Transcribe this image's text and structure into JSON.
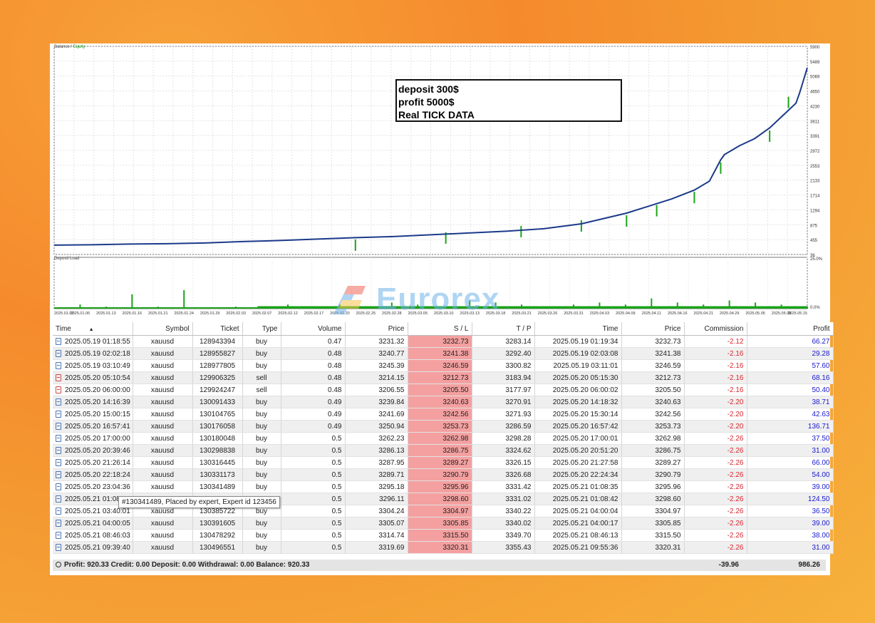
{
  "chart_data": [
    {
      "type": "line",
      "title": "",
      "legend": [
        "Balance",
        "Equity"
      ],
      "legend_separator": "/",
      "y_ticks": [
        "5900",
        "5489",
        "5069",
        "4650",
        "4230",
        "3811",
        "3391",
        "2972",
        "2553",
        "2133",
        "1714",
        "1294",
        "875",
        "455",
        "36"
      ],
      "ylim": [
        36,
        5900
      ],
      "series": [
        {
          "name": "Balance",
          "x": [
            0,
            0.05,
            0.1,
            0.15,
            0.2,
            0.25,
            0.3,
            0.35,
            0.4,
            0.45,
            0.5,
            0.55,
            0.6,
            0.65,
            0.7,
            0.73,
            0.76,
            0.79,
            0.82,
            0.85,
            0.87,
            0.885,
            0.89,
            0.91,
            0.93,
            0.95,
            0.97,
            0.985,
            0.99,
            1.0
          ],
          "y": [
            300,
            310,
            330,
            340,
            360,
            400,
            430,
            470,
            510,
            540,
            590,
            640,
            690,
            760,
            900,
            1050,
            1200,
            1400,
            1600,
            1850,
            2100,
            2700,
            2850,
            3100,
            3300,
            3600,
            4000,
            4300,
            4600,
            5300
          ]
        },
        {
          "name": "Equity",
          "x": [
            0.4,
            0.52,
            0.62,
            0.7,
            0.76,
            0.8,
            0.85,
            0.885,
            0.95,
            0.975
          ],
          "y": [
            380,
            580,
            760,
            920,
            1060,
            1350,
            1720,
            2550,
            3450,
            4400
          ]
        }
      ],
      "colors": {
        "balance": "#1b3a8a",
        "equity": "#1aa31a"
      }
    },
    {
      "type": "bar",
      "title": "Deposit Load",
      "y_ticks": [
        "25.0%",
        "0.0%"
      ],
      "x_ticks": [
        "2025.01.02",
        "2025.01.06",
        "2025.01.13",
        "2025.01.16",
        "2025.01.21",
        "2025.01.24",
        "2025.01.29",
        "2025.02.03",
        "2025.02.07",
        "2025.02.12",
        "2025.02.17",
        "2025.02.20",
        "2025.02.25",
        "2025.02.28",
        "2025.03.05",
        "2025.03.10",
        "2025.03.13",
        "2025.03.18",
        "2025.03.21",
        "2025.03.26",
        "2025.03.31",
        "2025.04.03",
        "2025.04.09",
        "2025.04.11",
        "2025.04.16",
        "2025.04.21",
        "2025.04.29",
        "2025.05.05",
        "2025.05.08",
        "2025.05.15"
      ],
      "values_pct": [
        0,
        2,
        1,
        7,
        1,
        9,
        0,
        1,
        1,
        2,
        1,
        2,
        1,
        3,
        2,
        1,
        4,
        3,
        2,
        1,
        2,
        3,
        2,
        5,
        3,
        2,
        4,
        3,
        2,
        1
      ],
      "color": "#1aa31a"
    }
  ],
  "annotation": {
    "lines": [
      "deposit 300$",
      "profit 5000$",
      "Real TICK DATA"
    ]
  },
  "watermark": {
    "text": "Eurorex"
  },
  "table": {
    "columns": [
      "Time",
      "",
      "Symbol",
      "Ticket",
      "Type",
      "Volume",
      "Price",
      "S / L",
      "T / P",
      "Time",
      "Price",
      "Commission",
      "Profit"
    ],
    "sort_indicator": "▲",
    "rows": [
      {
        "time": "2025.05.19 01:18:55",
        "symbol": "xauusd",
        "ticket": "128943394",
        "type": "buy",
        "volume": "0.47",
        "price": "3231.32",
        "sl": "3232.73",
        "tp": "3283.14",
        "ctime": "2025.05.19 01:19:34",
        "cprice": "3232.73",
        "comm": "-2.12",
        "profit": "66.27"
      },
      {
        "time": "2025.05.19 02:02:18",
        "symbol": "xauusd",
        "ticket": "128955827",
        "type": "buy",
        "volume": "0.48",
        "price": "3240.77",
        "sl": "3241.38",
        "tp": "3292.40",
        "ctime": "2025.05.19 02:03:08",
        "cprice": "3241.38",
        "comm": "-2.16",
        "profit": "29.28"
      },
      {
        "time": "2025.05.19 03:10:49",
        "symbol": "xauusd",
        "ticket": "128977805",
        "type": "buy",
        "volume": "0.48",
        "price": "3245.39",
        "sl": "3246.59",
        "tp": "3300.82",
        "ctime": "2025.05.19 03:11:01",
        "cprice": "3246.59",
        "comm": "-2.16",
        "profit": "57.60"
      },
      {
        "time": "2025.05.20 05:10:54",
        "symbol": "xauusd",
        "ticket": "129906325",
        "type": "sell",
        "volume": "0.48",
        "price": "3214.15",
        "sl": "3212.73",
        "tp": "3183.94",
        "ctime": "2025.05.20 05:15:30",
        "cprice": "3212.73",
        "comm": "-2.16",
        "profit": "68.16"
      },
      {
        "time": "2025.05.20 06:00:00",
        "symbol": "xauusd",
        "ticket": "129924247",
        "type": "sell",
        "volume": "0.48",
        "price": "3206.55",
        "sl": "3205.50",
        "tp": "3177.97",
        "ctime": "2025.05.20 06:00:02",
        "cprice": "3205.50",
        "comm": "-2.16",
        "profit": "50.40"
      },
      {
        "time": "2025.05.20 14:16:39",
        "symbol": "xauusd",
        "ticket": "130091433",
        "type": "buy",
        "volume": "0.49",
        "price": "3239.84",
        "sl": "3240.63",
        "tp": "3270.91",
        "ctime": "2025.05.20 14:18:32",
        "cprice": "3240.63",
        "comm": "-2.20",
        "profit": "38.71"
      },
      {
        "time": "2025.05.20 15:00:15",
        "symbol": "xauusd",
        "ticket": "130104765",
        "type": "buy",
        "volume": "0.49",
        "price": "3241.69",
        "sl": "3242.56",
        "tp": "3271.93",
        "ctime": "2025.05.20 15:30:14",
        "cprice": "3242.56",
        "comm": "-2.20",
        "profit": "42.63"
      },
      {
        "time": "2025.05.20 16:57:41",
        "symbol": "xauusd",
        "ticket": "130176058",
        "type": "buy",
        "volume": "0.49",
        "price": "3250.94",
        "sl": "3253.73",
        "tp": "3286.59",
        "ctime": "2025.05.20 16:57:42",
        "cprice": "3253.73",
        "comm": "-2.20",
        "profit": "136.71"
      },
      {
        "time": "2025.05.20 17:00:00",
        "symbol": "xauusd",
        "ticket": "130180048",
        "type": "buy",
        "volume": "0.5",
        "price": "3262.23",
        "sl": "3262.98",
        "tp": "3298.28",
        "ctime": "2025.05.20 17:00:01",
        "cprice": "3262.98",
        "comm": "-2.26",
        "profit": "37.50"
      },
      {
        "time": "2025.05.20 20:39:46",
        "symbol": "xauusd",
        "ticket": "130298838",
        "type": "buy",
        "volume": "0.5",
        "price": "3286.13",
        "sl": "3286.75",
        "tp": "3324.62",
        "ctime": "2025.05.20 20:51:20",
        "cprice": "3286.75",
        "comm": "-2.26",
        "profit": "31.00"
      },
      {
        "time": "2025.05.20 21:26:14",
        "symbol": "xauusd",
        "ticket": "130316445",
        "type": "buy",
        "volume": "0.5",
        "price": "3287.95",
        "sl": "3289.27",
        "tp": "3326.15",
        "ctime": "2025.05.20 21:27:58",
        "cprice": "3289.27",
        "comm": "-2.26",
        "profit": "66.00"
      },
      {
        "time": "2025.05.20 22:18:24",
        "symbol": "xauusd",
        "ticket": "130331173",
        "type": "buy",
        "volume": "0.5",
        "price": "3289.71",
        "sl": "3290.79",
        "tp": "3326.68",
        "ctime": "2025.05.20 22:24:34",
        "cprice": "3290.79",
        "comm": "-2.26",
        "profit": "54.00"
      },
      {
        "time": "2025.05.20 23:04:36",
        "symbol": "xauusd",
        "ticket": "130341489",
        "type": "buy",
        "volume": "0.5",
        "price": "3295.18",
        "sl": "3295.96",
        "tp": "3331.42",
        "ctime": "2025.05.21 01:08:35",
        "cprice": "3295.96",
        "comm": "-2.26",
        "profit": "39.00"
      },
      {
        "time": "2025.05.21 01:08:",
        "symbol": "",
        "ticket": "",
        "type": "",
        "volume": "0.5",
        "price": "3296.11",
        "sl": "3298.60",
        "tp": "3331.02",
        "ctime": "2025.05.21 01:08:42",
        "cprice": "3298.60",
        "comm": "-2.26",
        "profit": "124.50"
      },
      {
        "time": "2025.05.21 03:40:01",
        "symbol": "xauusd",
        "ticket": "130385722",
        "type": "buy",
        "volume": "0.5",
        "price": "3304.24",
        "sl": "3304.97",
        "tp": "3340.22",
        "ctime": "2025.05.21 04:00:04",
        "cprice": "3304.97",
        "comm": "-2.26",
        "profit": "36.50"
      },
      {
        "time": "2025.05.21 04:00:05",
        "symbol": "xauusd",
        "ticket": "130391605",
        "type": "buy",
        "volume": "0.5",
        "price": "3305.07",
        "sl": "3305.85",
        "tp": "3340.02",
        "ctime": "2025.05.21 04:00:17",
        "cprice": "3305.85",
        "comm": "-2.26",
        "profit": "39.00"
      },
      {
        "time": "2025.05.21 08:46:03",
        "symbol": "xauusd",
        "ticket": "130478292",
        "type": "buy",
        "volume": "0.5",
        "price": "3314.74",
        "sl": "3315.50",
        "tp": "3349.70",
        "ctime": "2025.05.21 08:46:13",
        "cprice": "3315.50",
        "comm": "-2.26",
        "profit": "38.00"
      },
      {
        "time": "2025.05.21 09:39:40",
        "symbol": "xauusd",
        "ticket": "130496551",
        "type": "buy",
        "volume": "0.5",
        "price": "3319.69",
        "sl": "3320.31",
        "tp": "3355.43",
        "ctime": "2025.05.21 09:55:36",
        "cprice": "3320.31",
        "comm": "-2.26",
        "profit": "31.00"
      }
    ],
    "tooltip": "#130341489, Placed by expert, Expert id 123456",
    "footer": {
      "summary": "Profit: 920.33  Credit: 0.00  Deposit: 0.00  Withdrawal: 0.00  Balance: 920.33",
      "commission_total": "-39.96",
      "profit_total": "986.26"
    }
  }
}
